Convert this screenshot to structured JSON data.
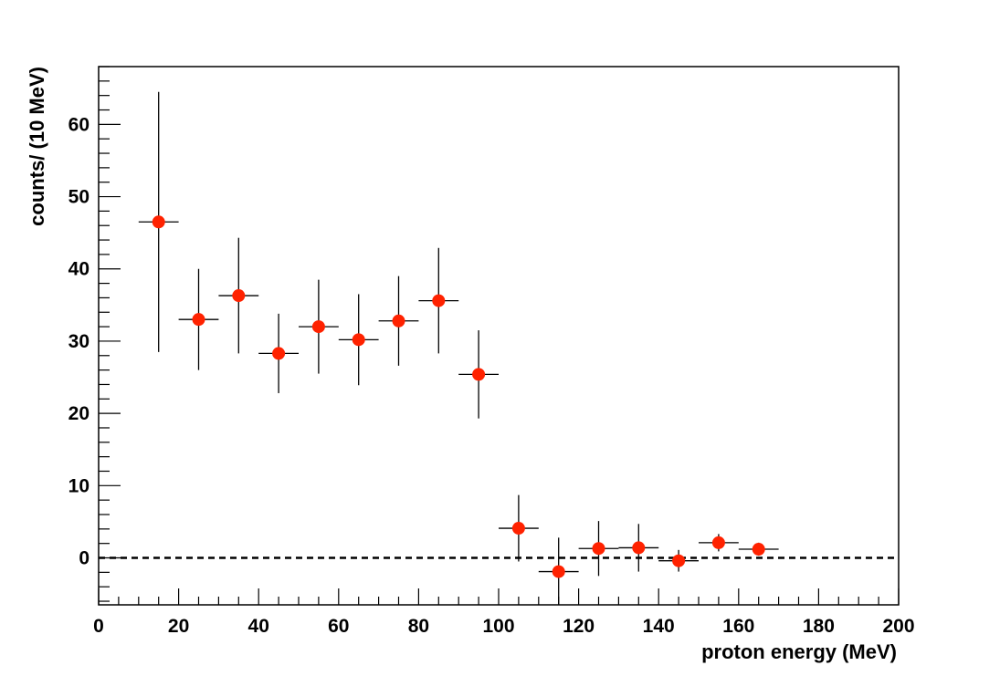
{
  "chart_data": {
    "type": "scatter",
    "title": "",
    "xlabel": "proton energy (MeV)",
    "ylabel": "counts/ (10 MeV)",
    "xlim": [
      0,
      200
    ],
    "ylim": [
      -6.5,
      68
    ],
    "x_ticks": [
      "0",
      "20",
      "40",
      "60",
      "80",
      "100",
      "120",
      "140",
      "160",
      "180",
      "200"
    ],
    "x_tick_values": [
      0,
      20,
      40,
      60,
      80,
      100,
      120,
      140,
      160,
      180,
      200
    ],
    "y_ticks": [
      "0",
      "10",
      "20",
      "30",
      "40",
      "50",
      "60"
    ],
    "y_tick_values": [
      0,
      10,
      20,
      30,
      40,
      50,
      60
    ],
    "grid": false,
    "reference_line": {
      "y": 0,
      "style": "dashed"
    },
    "marker_color": "#ff2200",
    "series": [
      {
        "x": [
          15,
          25,
          35,
          45,
          55,
          65,
          75,
          85,
          95,
          105,
          115,
          125,
          135,
          145,
          155,
          165
        ],
        "x_err": [
          5,
          5,
          5,
          5,
          5,
          5,
          5,
          5,
          5,
          5,
          5,
          5,
          5,
          5,
          5,
          5
        ],
        "y": [
          46.5,
          33,
          36.3,
          28.3,
          32,
          30.2,
          32.8,
          35.6,
          25.4,
          4.1,
          -1.9,
          1.3,
          1.4,
          -0.4,
          2.1,
          1.2
        ],
        "y_err_low": [
          18,
          7,
          8,
          5.5,
          6.5,
          6.3,
          6.2,
          7.3,
          6.1,
          4.6,
          5,
          3.8,
          3.3,
          1.5,
          1.2,
          0.9
        ],
        "y_err_high": [
          18,
          7,
          8,
          5.5,
          6.5,
          6.3,
          6.2,
          7.3,
          6.1,
          4.6,
          4.7,
          3.8,
          3.3,
          1.5,
          1.2,
          0.9
        ]
      }
    ]
  }
}
